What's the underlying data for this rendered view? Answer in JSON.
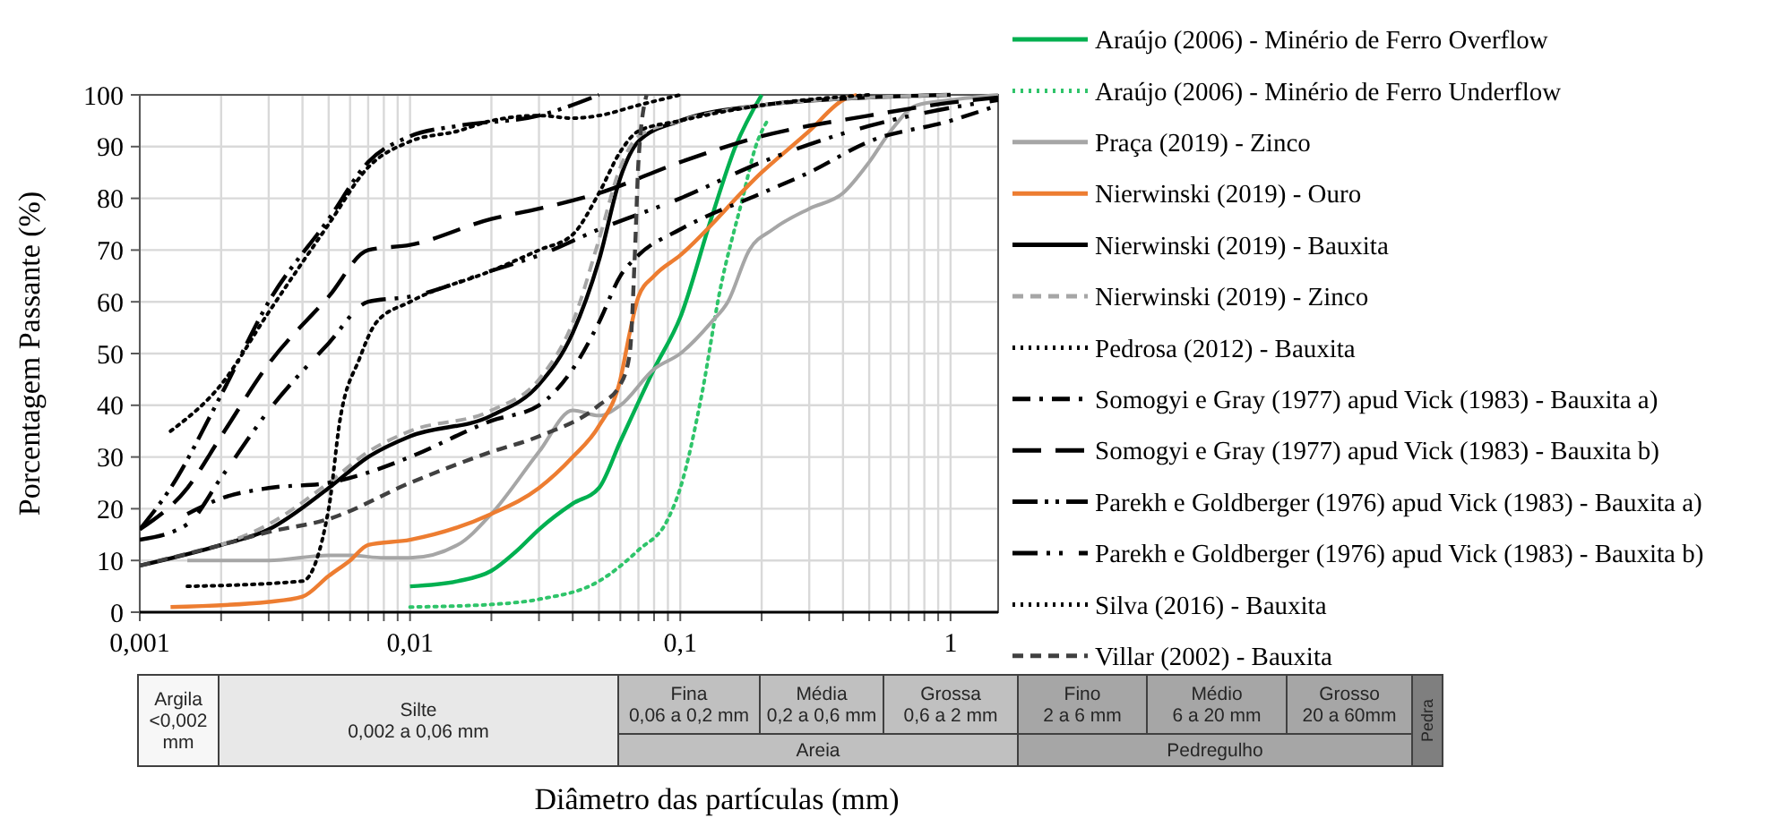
{
  "chart_data": {
    "type": "line",
    "xlabel": "Diâmetro das partículas (mm)",
    "ylabel": "Porcentagem Passante (%)",
    "log": "x",
    "grid": true,
    "legend": "right",
    "xlim": [
      0.001,
      1.5
    ],
    "ylim": [
      0,
      100
    ],
    "xticks": [
      {
        "value": 0.001,
        "label": "0,001"
      },
      {
        "value": 0.002,
        "label": null
      },
      {
        "value": 0.003,
        "label": null
      },
      {
        "value": 0.004,
        "label": null
      },
      {
        "value": 0.005,
        "label": null
      },
      {
        "value": 0.006,
        "label": null
      },
      {
        "value": 0.007,
        "label": null
      },
      {
        "value": 0.008,
        "label": null
      },
      {
        "value": 0.009,
        "label": null
      },
      {
        "value": 0.01,
        "label": "0,01"
      },
      {
        "value": 0.02,
        "label": null
      },
      {
        "value": 0.03,
        "label": null
      },
      {
        "value": 0.04,
        "label": null
      },
      {
        "value": 0.05,
        "label": null
      },
      {
        "value": 0.06,
        "label": null
      },
      {
        "value": 0.07,
        "label": null
      },
      {
        "value": 0.08,
        "label": null
      },
      {
        "value": 0.09,
        "label": null
      },
      {
        "value": 0.1,
        "label": "0,1"
      },
      {
        "value": 0.2,
        "label": null
      },
      {
        "value": 0.3,
        "label": null
      },
      {
        "value": 0.4,
        "label": null
      },
      {
        "value": 0.5,
        "label": null
      },
      {
        "value": 0.6,
        "label": null
      },
      {
        "value": 0.7,
        "label": null
      },
      {
        "value": 0.8,
        "label": null
      },
      {
        "value": 0.9,
        "label": null
      },
      {
        "value": 1,
        "label": "1"
      }
    ],
    "yticks": [
      0,
      10,
      20,
      30,
      40,
      50,
      60,
      70,
      80,
      90,
      100
    ],
    "series": [
      {
        "name": "Araújo (2006) - Minério de Ferro Overflow",
        "color": "#00b050",
        "line_style": "solid",
        "x": [
          0.01,
          0.015,
          0.02,
          0.025,
          0.03,
          0.04,
          0.05,
          0.06,
          0.08,
          0.1,
          0.13,
          0.16,
          0.2
        ],
        "values": [
          5,
          6,
          8,
          12,
          16,
          21,
          24,
          33,
          47,
          57,
          76,
          90,
          100
        ]
      },
      {
        "name": "Araújo (2006) - Minério de Ferro Underflow",
        "color": "#2fc46a",
        "line_style": "dotted",
        "x": [
          0.01,
          0.02,
          0.03,
          0.05,
          0.07,
          0.09,
          0.1,
          0.12,
          0.14,
          0.17,
          0.19,
          0.21
        ],
        "values": [
          1,
          1.5,
          2.5,
          6,
          12,
          18,
          24,
          42,
          62,
          80,
          90,
          95
        ]
      },
      {
        "name": "Praça (2019) - Zinco",
        "color": "#a6a6a6",
        "line_style": "solid",
        "x": [
          0.0015,
          0.003,
          0.005,
          0.006,
          0.008,
          0.01,
          0.015,
          0.02,
          0.03,
          0.04,
          0.05,
          0.06,
          0.08,
          0.1,
          0.13,
          0.15,
          0.18,
          0.22,
          0.3,
          0.4,
          0.5,
          0.6,
          0.75,
          1,
          1.5
        ],
        "values": [
          10,
          10,
          11,
          11,
          10.5,
          10.5,
          13,
          19,
          31,
          39,
          38,
          40,
          47,
          50,
          56,
          60,
          70,
          74,
          78,
          81,
          87,
          93,
          98,
          99,
          100
        ]
      },
      {
        "name": "Nierwinski (2019) - Ouro",
        "color": "#ed7d31",
        "line_style": "solid",
        "x": [
          0.0013,
          0.003,
          0.004,
          0.005,
          0.006,
          0.007,
          0.01,
          0.02,
          0.03,
          0.04,
          0.05,
          0.06,
          0.065,
          0.07,
          0.08,
          0.1,
          0.2,
          0.3,
          0.4,
          0.45
        ],
        "values": [
          1,
          2,
          3,
          7,
          10,
          13,
          14,
          19,
          24,
          30,
          36,
          45,
          54,
          61,
          65,
          69,
          85,
          93,
          99,
          100
        ]
      },
      {
        "name": "Nierwinski (2019) - Bauxita",
        "color": "#000000",
        "line_style": "solid",
        "x": [
          0.001,
          0.002,
          0.003,
          0.005,
          0.007,
          0.01,
          0.02,
          0.03,
          0.04,
          0.05,
          0.06,
          0.07,
          0.1,
          0.2,
          0.5,
          1
        ],
        "values": [
          9,
          13,
          16,
          24,
          30,
          34,
          38,
          44,
          54,
          68,
          84,
          91,
          95,
          98,
          99.5,
          100
        ]
      },
      {
        "name": "Nierwinski (2019) - Zinco",
        "color": "#a6a6a6",
        "line_style": "dashed",
        "x": [
          0.002,
          0.003,
          0.005,
          0.007,
          0.01,
          0.02,
          0.03,
          0.04,
          0.05,
          0.06,
          0.07,
          0.1,
          0.2,
          0.5,
          1
        ],
        "values": [
          13,
          17,
          25,
          31,
          35,
          39,
          45,
          56,
          72,
          86,
          92,
          95,
          98,
          99.5,
          100
        ]
      },
      {
        "name": "Pedrosa (2012) - Bauxita",
        "color": "#000000",
        "line_style": "dotted",
        "x": [
          0.0013,
          0.002,
          0.003,
          0.005,
          0.007,
          0.01,
          0.015,
          0.02,
          0.03,
          0.04,
          0.05,
          0.07,
          0.1
        ],
        "values": [
          35,
          44,
          58,
          75,
          86,
          91,
          93,
          95,
          96,
          95.5,
          96,
          98,
          100
        ]
      },
      {
        "name": "Somogyi e Gray (1977) apud Vick (1983) - Bauxita a)",
        "color": "#000000",
        "line_style": "dashdot",
        "x": [
          0.0015,
          0.002,
          0.003,
          0.005,
          0.007,
          0.01,
          0.02,
          0.03,
          0.04,
          0.05,
          0.06,
          0.07,
          0.1,
          0.2,
          0.3,
          0.5,
          1,
          1.5
        ],
        "values": [
          19,
          22,
          24,
          25,
          27,
          30,
          37,
          40,
          47,
          56,
          65,
          69,
          74,
          81,
          85,
          91,
          95,
          98
        ]
      },
      {
        "name": "Somogyi e Gray (1977) apud Vick (1983) - Bauxita b)",
        "color": "#000000",
        "line_style": "longdash",
        "x": [
          0.001,
          0.0015,
          0.002,
          0.003,
          0.005,
          0.007,
          0.01,
          0.02,
          0.03,
          0.05,
          0.1,
          0.2,
          0.5,
          1,
          1.5
        ],
        "values": [
          16,
          24,
          34,
          48,
          61,
          70,
          71,
          76,
          78,
          81,
          87,
          92,
          96,
          98.5,
          99.5
        ]
      },
      {
        "name": "Parekh e Goldberger (1976) apud Vick (1983) - Bauxita a)",
        "color": "#000000",
        "line_style": "dashdotdot",
        "x": [
          0.001,
          0.0013,
          0.002,
          0.003,
          0.005,
          0.007,
          0.01,
          0.015,
          0.03,
          0.05
        ],
        "values": [
          16,
          24,
          42,
          60,
          76,
          87,
          92,
          94,
          96,
          100
        ]
      },
      {
        "name": "Parekh e Goldberger (1976) apud Vick (1983) - Bauxita b)",
        "color": "#000000",
        "line_style": "dashdotdot2",
        "x": [
          0.001,
          0.0015,
          0.002,
          0.003,
          0.005,
          0.007,
          0.01,
          0.02,
          0.03,
          0.05,
          0.1,
          0.2,
          0.5,
          1,
          1.5
        ],
        "values": [
          14,
          17,
          26,
          39,
          52,
          60,
          61,
          66,
          69,
          74,
          80,
          87,
          94,
          97.5,
          99
        ]
      },
      {
        "name": "Silva (2016) - Bauxita",
        "color": "#000000",
        "line_style": "dotted",
        "x": [
          0.0015,
          0.004,
          0.005,
          0.0055,
          0.0065,
          0.0075,
          0.01,
          0.02,
          0.03,
          0.04,
          0.05,
          0.06,
          0.07,
          0.1,
          0.2,
          0.5
        ],
        "values": [
          5,
          6,
          20,
          37,
          49,
          56,
          60,
          66,
          70,
          73,
          81,
          89,
          93,
          95,
          98,
          100
        ]
      },
      {
        "name": "Villar (2002) - Bauxita",
        "color": "#404040",
        "line_style": "dashed",
        "x": [
          0.001,
          0.002,
          0.003,
          0.005,
          0.01,
          0.02,
          0.03,
          0.05,
          0.06,
          0.065,
          0.068,
          0.07,
          0.075
        ],
        "values": [
          9,
          13,
          15.5,
          18,
          25,
          31,
          34,
          40,
          44,
          50,
          70,
          87,
          100
        ]
      }
    ],
    "annotations": [
      "Argila\n<0,002\nmm",
      "Silte\n0,002 a 0,06 mm",
      "Fina\n0,06 a 0,2 mm",
      "Média\n0,2 a 0,6 mm",
      "Grossa\n0,6 a 2 mm",
      "Areia",
      "Fino\n2 a 6 mm",
      "Médio\n6 a 20 mm",
      "Grosso\n20 a 60mm",
      "Pedregulho",
      "Pedra"
    ]
  }
}
